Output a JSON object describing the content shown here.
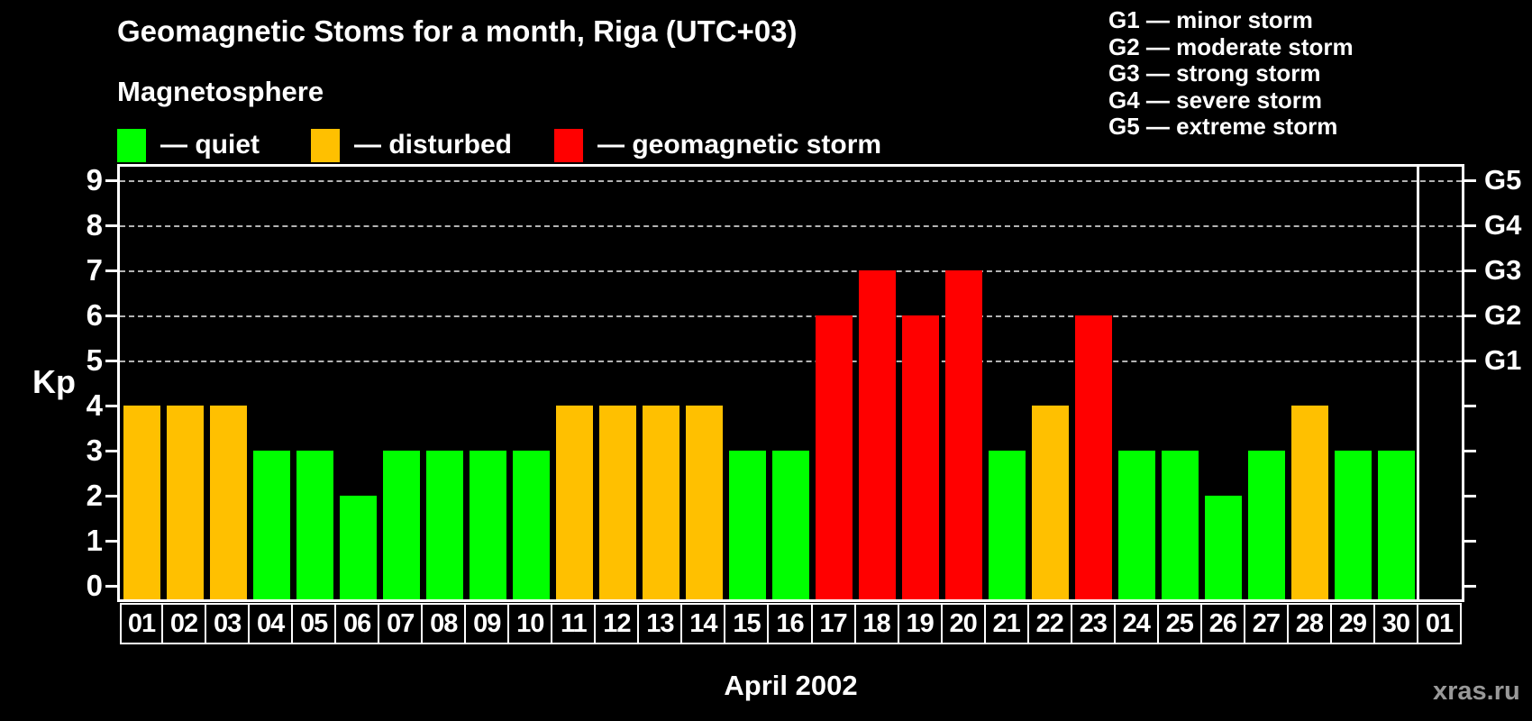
{
  "subtitle": "Magnetosphere",
  "legend": {
    "items": [
      {
        "key": "quiet",
        "label": "— quiet",
        "color": "#00ff00"
      },
      {
        "key": "disturbed",
        "label": "— disturbed",
        "color": "#ffc000"
      },
      {
        "key": "storm",
        "label": "— geomagnetic storm",
        "color": "#ff0000"
      }
    ]
  },
  "g_scale": {
    "items": [
      "G1 — minor storm",
      "G2 — moderate storm",
      "G3 — strong storm",
      "G4 — severe storm",
      "G5 — extreme storm"
    ]
  },
  "watermark": "xras.ru",
  "chart_data": {
    "type": "bar",
    "title": "Geomagnetic Stoms for a month, Riga (UTC+03)",
    "xlabel": "April 2002",
    "ylabel": "Kp",
    "ylim": [
      0,
      9
    ],
    "y_ticks": [
      0,
      1,
      2,
      3,
      4,
      5,
      6,
      7,
      8,
      9
    ],
    "gridlines_kp": [
      5,
      6,
      7,
      8,
      9
    ],
    "grid": "dashed horizontal at Kp 5-9",
    "legend_position": "top",
    "categories": [
      "01",
      "02",
      "03",
      "04",
      "05",
      "06",
      "07",
      "08",
      "09",
      "10",
      "11",
      "12",
      "13",
      "14",
      "15",
      "16",
      "17",
      "18",
      "19",
      "20",
      "21",
      "22",
      "23",
      "24",
      "25",
      "26",
      "27",
      "28",
      "29",
      "30",
      "01"
    ],
    "values": [
      4,
      4,
      4,
      3,
      3,
      2,
      3,
      3,
      3,
      3,
      4,
      4,
      4,
      4,
      3,
      3,
      6,
      7,
      6,
      7,
      3,
      4,
      6,
      3,
      3,
      2,
      3,
      4,
      3,
      3,
      null
    ],
    "statuses": [
      "disturbed",
      "disturbed",
      "disturbed",
      "quiet",
      "quiet",
      "quiet",
      "quiet",
      "quiet",
      "quiet",
      "quiet",
      "disturbed",
      "disturbed",
      "disturbed",
      "disturbed",
      "quiet",
      "quiet",
      "storm",
      "storm",
      "storm",
      "storm",
      "quiet",
      "disturbed",
      "storm",
      "quiet",
      "quiet",
      "quiet",
      "quiet",
      "disturbed",
      "quiet",
      "quiet",
      null
    ],
    "status_colors": {
      "quiet": "#00ff00",
      "disturbed": "#ffc000",
      "storm": "#ff0000"
    },
    "right_axis": [
      {
        "kp": 5,
        "label": "G1"
      },
      {
        "kp": 6,
        "label": "G2"
      },
      {
        "kp": 7,
        "label": "G3"
      },
      {
        "kp": 8,
        "label": "G4"
      },
      {
        "kp": 9,
        "label": "G5"
      }
    ],
    "separator_after_category_index": 29
  }
}
